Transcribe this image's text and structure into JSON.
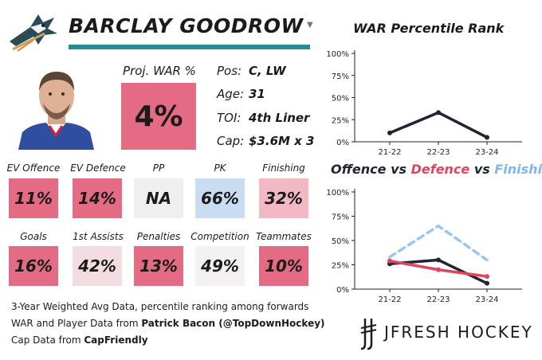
{
  "player": {
    "name": "BARCLAY GOODROW",
    "team_logo_icon": "sharks-logo-icon",
    "photo_icon": "player-headshot-icon"
  },
  "proj_war": {
    "label": "Proj. WAR %",
    "value": "4%",
    "color": "#e36b84"
  },
  "info": [
    {
      "label": "Pos:",
      "value": "C, LW"
    },
    {
      "label": "Age:",
      "value": "31"
    },
    {
      "label": "TOI:",
      "value": "4th Liner"
    },
    {
      "label": "Cap:",
      "value": "$3.6M x 3"
    }
  ],
  "stats_row1": [
    {
      "label": "EV Offence",
      "value": "11%",
      "color": "#e36b84"
    },
    {
      "label": "EV Defence",
      "value": "14%",
      "color": "#e36b84"
    },
    {
      "label": "PP",
      "value": "NA",
      "color": "#efefef"
    },
    {
      "label": "PK",
      "value": "66%",
      "color": "#c9dcf2"
    },
    {
      "label": "Finishing",
      "value": "32%",
      "color": "#f2b8c4"
    }
  ],
  "stats_row2": [
    {
      "label": "Goals",
      "value": "16%",
      "color": "#e36b84"
    },
    {
      "label": "1st Assists",
      "value": "42%",
      "color": "#f4dde2"
    },
    {
      "label": "Penalties",
      "value": "13%",
      "color": "#e36b84"
    },
    {
      "label": "Competition",
      "value": "49%",
      "color": "#f3f1f2"
    },
    {
      "label": "Teammates",
      "value": "10%",
      "color": "#e36b84"
    }
  ],
  "footer": {
    "line1": "3-Year Weighted Avg Data, percentile ranking among forwards",
    "line2_prefix": "WAR and Player Data from ",
    "line2_source": "Patrick Bacon (@TopDownHockey)",
    "line3_prefix": "Cap Data from ",
    "line3_source": "CapFriendly"
  },
  "brand": {
    "text": "JFRESH HOCKEY",
    "icon": "jfresh-logo-icon"
  },
  "chart_data": [
    {
      "type": "line",
      "title": "WAR Percentile Rank",
      "categories": [
        "21-22",
        "22-23",
        "23-24"
      ],
      "series": [
        {
          "values": [
            10,
            33,
            5
          ],
          "color": "#1f2430",
          "style": "solid"
        }
      ],
      "ylim": [
        0,
        100
      ],
      "yticks": [
        "0%",
        "25%",
        "50%",
        "75%",
        "100%"
      ],
      "grid": false
    },
    {
      "type": "line",
      "title_parts": [
        {
          "text": "Offence",
          "color": "#1f2430"
        },
        {
          "text": " vs ",
          "color": "#1f2430"
        },
        {
          "text": "Defence",
          "color": "#e0455f"
        },
        {
          "text": " vs ",
          "color": "#1f2430"
        },
        {
          "text": "Finishing",
          "color": "#7fb6ea"
        }
      ],
      "categories": [
        "21-22",
        "22-23",
        "23-24"
      ],
      "series": [
        {
          "name": "Offence",
          "values": [
            26,
            30,
            6
          ],
          "color": "#1f2430",
          "style": "solid"
        },
        {
          "name": "Defence",
          "values": [
            29,
            20,
            13
          ],
          "color": "#e0455f",
          "style": "solid"
        },
        {
          "name": "Finishing",
          "values": [
            33,
            65,
            30
          ],
          "color": "#9cc6ef",
          "style": "dashed"
        }
      ],
      "ylim": [
        0,
        100
      ],
      "yticks": [
        "0%",
        "25%",
        "50%",
        "75%",
        "100%"
      ],
      "grid": false
    }
  ]
}
